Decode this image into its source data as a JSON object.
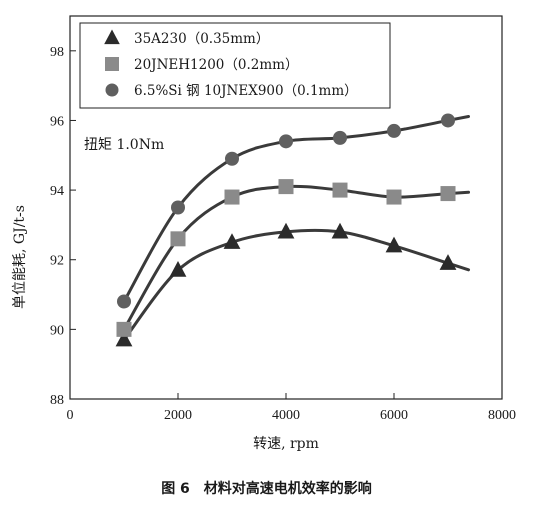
{
  "chart_data": {
    "type": "line",
    "title": "",
    "xlabel": "转速, rpm",
    "ylabel": "单位能耗, GJ/t-s",
    "xlim": [
      0,
      8000
    ],
    "ylim": [
      88,
      99
    ],
    "x_ticks": [
      "0",
      "2000",
      "4000",
      "6000",
      "8000"
    ],
    "y_ticks": [
      "88",
      "90",
      "92",
      "94",
      "96",
      "98"
    ],
    "annotation": "扭矩 1.0Nm",
    "legend_position": "top",
    "series": [
      {
        "name": "35A230（0.35mm）",
        "marker": "triangle",
        "x": [
          1000,
          2000,
          3000,
          4000,
          5000,
          6000,
          7000
        ],
        "y": [
          89.7,
          91.7,
          92.5,
          92.8,
          92.8,
          92.4,
          91.9
        ]
      },
      {
        "name": "20JNEH1200（0.2mm）",
        "marker": "square",
        "x": [
          1000,
          2000,
          3000,
          4000,
          5000,
          6000,
          7000
        ],
        "y": [
          90.0,
          92.6,
          93.8,
          94.1,
          94.0,
          93.8,
          93.9
        ]
      },
      {
        "name": "6.5%Si 钢 10JNEX900（0.1mm）",
        "marker": "circle",
        "x": [
          1000,
          2000,
          3000,
          4000,
          5000,
          6000,
          7000
        ],
        "y": [
          90.8,
          93.5,
          94.9,
          95.4,
          95.5,
          95.7,
          96.0
        ]
      }
    ],
    "colors": {
      "series": [
        "#2b2b2b",
        "#8a8a8a",
        "#5f5f5f"
      ],
      "line": "#3a3a3a"
    }
  },
  "caption": "图 6　材料对高速电机效率的影响"
}
